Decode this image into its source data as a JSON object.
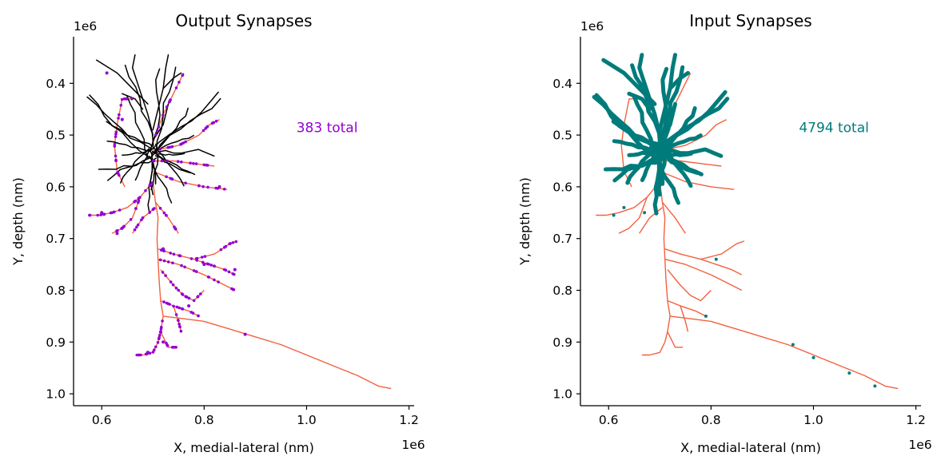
{
  "colors": {
    "axon": "#f4603f",
    "dendrite": "#000000",
    "output_synapse": "#9400d3",
    "input_synapse": "#007b7b",
    "input_dendrite_highlight": "#007b7b"
  },
  "chart_data": [
    {
      "type": "scatter",
      "title": "Output Synapses",
      "xlabel": "X, medial-lateral (nm)",
      "ylabel": "Y, depth (nm)",
      "x_offset_label": "1e6",
      "y_offset_label": "1e6",
      "xlim": [
        0.545,
        1.21
      ],
      "ylim": [
        1.023,
        0.31
      ],
      "y_inverted": true,
      "xticks": [
        0.6,
        0.8,
        1.0,
        1.2
      ],
      "xtick_labels": [
        "0.6",
        "0.8",
        "1.0",
        "1.2"
      ],
      "yticks": [
        0.4,
        0.5,
        0.6,
        0.7,
        0.8,
        0.9,
        1.0
      ],
      "ytick_labels": [
        "0.4",
        "0.5",
        "0.6",
        "0.7",
        "0.8",
        "0.9",
        "1.0"
      ],
      "annotation": {
        "text": "383 total",
        "x": 1.04,
        "y": 0.485
      },
      "synapse_color": "#9400d3",
      "series": [
        {
          "name": "",
          "kind": "skeleton",
          "color": "#000000",
          "values": [
            [
              0.7,
              0.515
            ],
            [
              0.68,
              0.45
            ],
            [
              0.66,
              0.41
            ],
            [
              0.63,
              0.37
            ],
            [
              0.595,
              0.355
            ]
          ]
        },
        {
          "name": "",
          "kind": "synapses",
          "color": "#9400d3",
          "values": [
            [
              0.61,
              0.38
            ],
            [
              0.64,
              0.47
            ],
            [
              0.6,
              0.65
            ],
            [
              0.63,
              0.69
            ],
            [
              0.72,
              0.72
            ],
            [
              0.8,
              0.75
            ],
            [
              0.86,
              0.76
            ],
            [
              0.77,
              0.83
            ],
            [
              0.72,
              0.9
            ],
            [
              0.69,
              0.92
            ],
            [
              0.88,
              0.885
            ],
            [
              0.83,
              0.6
            ]
          ]
        }
      ]
    },
    {
      "type": "scatter",
      "title": "Input Synapses",
      "xlabel": "X, medial-lateral (nm)",
      "ylabel": "Y, depth (nm)",
      "x_offset_label": "1e6",
      "y_offset_label": "1e6",
      "xlim": [
        0.545,
        1.21
      ],
      "ylim": [
        1.023,
        0.31
      ],
      "y_inverted": true,
      "xticks": [
        0.6,
        0.8,
        1.0,
        1.2
      ],
      "xtick_labels": [
        "0.6",
        "0.8",
        "1.0",
        "1.2"
      ],
      "yticks": [
        0.4,
        0.5,
        0.6,
        0.7,
        0.8,
        0.9,
        1.0
      ],
      "ytick_labels": [
        "0.4",
        "0.5",
        "0.6",
        "0.7",
        "0.8",
        "0.9",
        "1.0"
      ],
      "annotation": {
        "text": "4794 total",
        "x": 1.04,
        "y": 0.485
      },
      "synapse_color": "#007b7b",
      "series": [
        {
          "name": "",
          "kind": "skeleton",
          "color": "#007b7b",
          "values": [
            [
              0.7,
              0.515
            ],
            [
              0.68,
              0.45
            ],
            [
              0.66,
              0.41
            ],
            [
              0.63,
              0.37
            ],
            [
              0.59,
              0.355
            ]
          ]
        },
        {
          "name": "",
          "kind": "synapses",
          "color": "#007b7b",
          "values": [
            [
              0.63,
              0.64
            ],
            [
              0.61,
              0.655
            ],
            [
              0.67,
              0.65
            ],
            [
              0.81,
              0.74
            ],
            [
              0.79,
              0.85
            ],
            [
              0.96,
              0.905
            ],
            [
              1.0,
              0.93
            ],
            [
              1.07,
              0.96
            ],
            [
              1.12,
              0.985
            ]
          ]
        }
      ]
    }
  ]
}
